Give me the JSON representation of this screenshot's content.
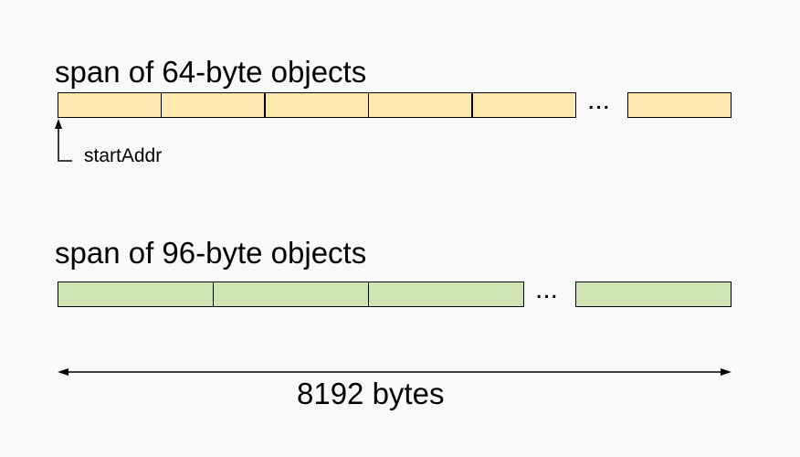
{
  "span64": {
    "title": "span of 64-byte objects",
    "ellipsis": "...",
    "start_label": "startAddr",
    "fill": "#fde8b0"
  },
  "span96": {
    "title": "span of 96-byte objects",
    "ellipsis": "...",
    "fill": "#d0e5b4"
  },
  "span_size": {
    "label": "8192 bytes"
  }
}
